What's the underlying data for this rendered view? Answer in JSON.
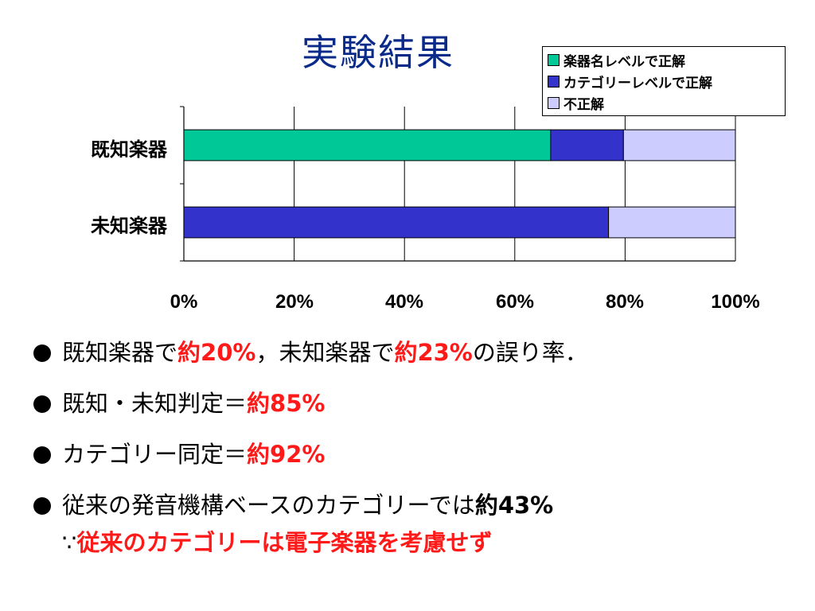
{
  "title": "実験結果",
  "chart_data": {
    "type": "bar",
    "orientation": "horizontal",
    "stacked": true,
    "categories": [
      "既知楽器",
      "未知楽器"
    ],
    "series": [
      {
        "name": "楽器名レベルで正解",
        "color": "#00c896",
        "values": [
          66.5,
          0
        ]
      },
      {
        "name": "カテゴリーレベルで正解",
        "color": "#3333cc",
        "values": [
          13.2,
          77
        ]
      },
      {
        "name": "不正解",
        "color": "#ccccff",
        "values": [
          20.3,
          23
        ]
      }
    ],
    "xlim": [
      0,
      100
    ],
    "xticks": [
      "0%",
      "20%",
      "40%",
      "60%",
      "80%",
      "100%"
    ],
    "grid": true,
    "legend": "top-right"
  },
  "bullets": [
    {
      "parts": [
        {
          "text": "既知楽器で",
          "style": "normal"
        },
        {
          "text": "約20%",
          "style": "red"
        },
        {
          "text": "，未知楽器で",
          "style": "normal"
        },
        {
          "text": "約23%",
          "style": "red"
        },
        {
          "text": "の誤り率．",
          "style": "normal"
        }
      ]
    },
    {
      "parts": [
        {
          "text": "既知・未知判定＝",
          "style": "normal"
        },
        {
          "text": "約85%",
          "style": "red"
        }
      ]
    },
    {
      "parts": [
        {
          "text": "カテゴリー同定＝",
          "style": "normal"
        },
        {
          "text": "約92%",
          "style": "red"
        }
      ]
    },
    {
      "parts": [
        {
          "text": "従来の発音機構ベースのカテゴリーでは",
          "style": "normal"
        },
        {
          "text": "約43%",
          "style": "bold"
        }
      ]
    }
  ],
  "subline": {
    "prefix": "∵",
    "text": "従来のカテゴリーは電子楽器を考慮せず"
  }
}
